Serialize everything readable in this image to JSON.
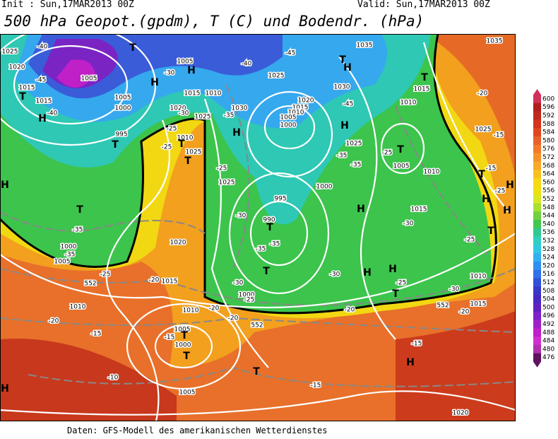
{
  "header": {
    "init": "Init : Sun,17MAR2013 00Z",
    "valid": "Valid: Sun,17MAR2013 00Z",
    "title": "500 hPa Geopot.(gpdm), T (C) und Bodendr. (hPa)"
  },
  "colorbar": {
    "labels": [
      600,
      596,
      592,
      588,
      584,
      580,
      576,
      572,
      568,
      564,
      560,
      556,
      552,
      548,
      544,
      540,
      536,
      532,
      528,
      524,
      520,
      516,
      512,
      508,
      504,
      500,
      496,
      492,
      488,
      484,
      480,
      476
    ],
    "colors": [
      "#d2305a",
      "#b01e1e",
      "#c0281e",
      "#d2321e",
      "#e04620",
      "#e8602a",
      "#f07a2a",
      "#f5922a",
      "#f8aa28",
      "#f8c020",
      "#f8d818",
      "#f0e010",
      "#d8e820",
      "#a8e030",
      "#70d040",
      "#40c850",
      "#30c890",
      "#30d0c0",
      "#30c8e0",
      "#30b0f0",
      "#3090f0",
      "#3070e8",
      "#3050d8",
      "#3838c8",
      "#4828c0",
      "#6020c0",
      "#8020c8",
      "#a020c8",
      "#c020c8",
      "#d030d0",
      "#b030b0",
      "#601060"
    ]
  },
  "map": {
    "labels": [
      "-40",
      "1025",
      "T",
      "1005",
      "-30",
      "-40",
      "-45",
      "1035",
      "1035",
      "T",
      "H",
      "T",
      "1020",
      "-45",
      "1005",
      "H",
      "H",
      "1025",
      "1030",
      "1015",
      "-20",
      "1015",
      "1015",
      "1010",
      "1020",
      "1010",
      "-45",
      "T",
      "1015",
      "1005",
      "1000",
      "1020",
      "1030",
      "1015",
      "1010",
      "-40",
      "H",
      "-30",
      "1025",
      "-35",
      "1005",
      "H",
      "1025",
      "-15",
      "995",
      "-25",
      "1000",
      "H",
      "1010",
      "T",
      "1025",
      "-25",
      "T",
      "T",
      "-25",
      "1025",
      "-35",
      "1005",
      "1010",
      "-35",
      "-15",
      "T",
      "T",
      "-25",
      "1025",
      "1000",
      "H",
      "H",
      "-25",
      "995",
      "H",
      "1015",
      "H",
      "H",
      "T",
      "-30",
      "990",
      "-30",
      "T",
      "-35",
      "T",
      "-25",
      "1020",
      "1000",
      "-35",
      "-35",
      "-35",
      "H",
      "1010",
      "1005",
      "T",
      "-25",
      "-20",
      "1015",
      "-30",
      "-30",
      "H",
      "-25",
      "1000",
      "-25",
      "-30",
      "T",
      "1010",
      "-20",
      "1010",
      "-20",
      "1015",
      "-20",
      "-20",
      "-20",
      "1005",
      "-15",
      "T",
      "-15",
      "1000",
      "T",
      "-15",
      "H",
      "T",
      "-10",
      "-15",
      "H",
      "1005",
      "1020",
      "552",
      "552",
      "552"
    ]
  },
  "footer": "Daten: GFS-Modell des amerikanischen Wetterdienstes"
}
